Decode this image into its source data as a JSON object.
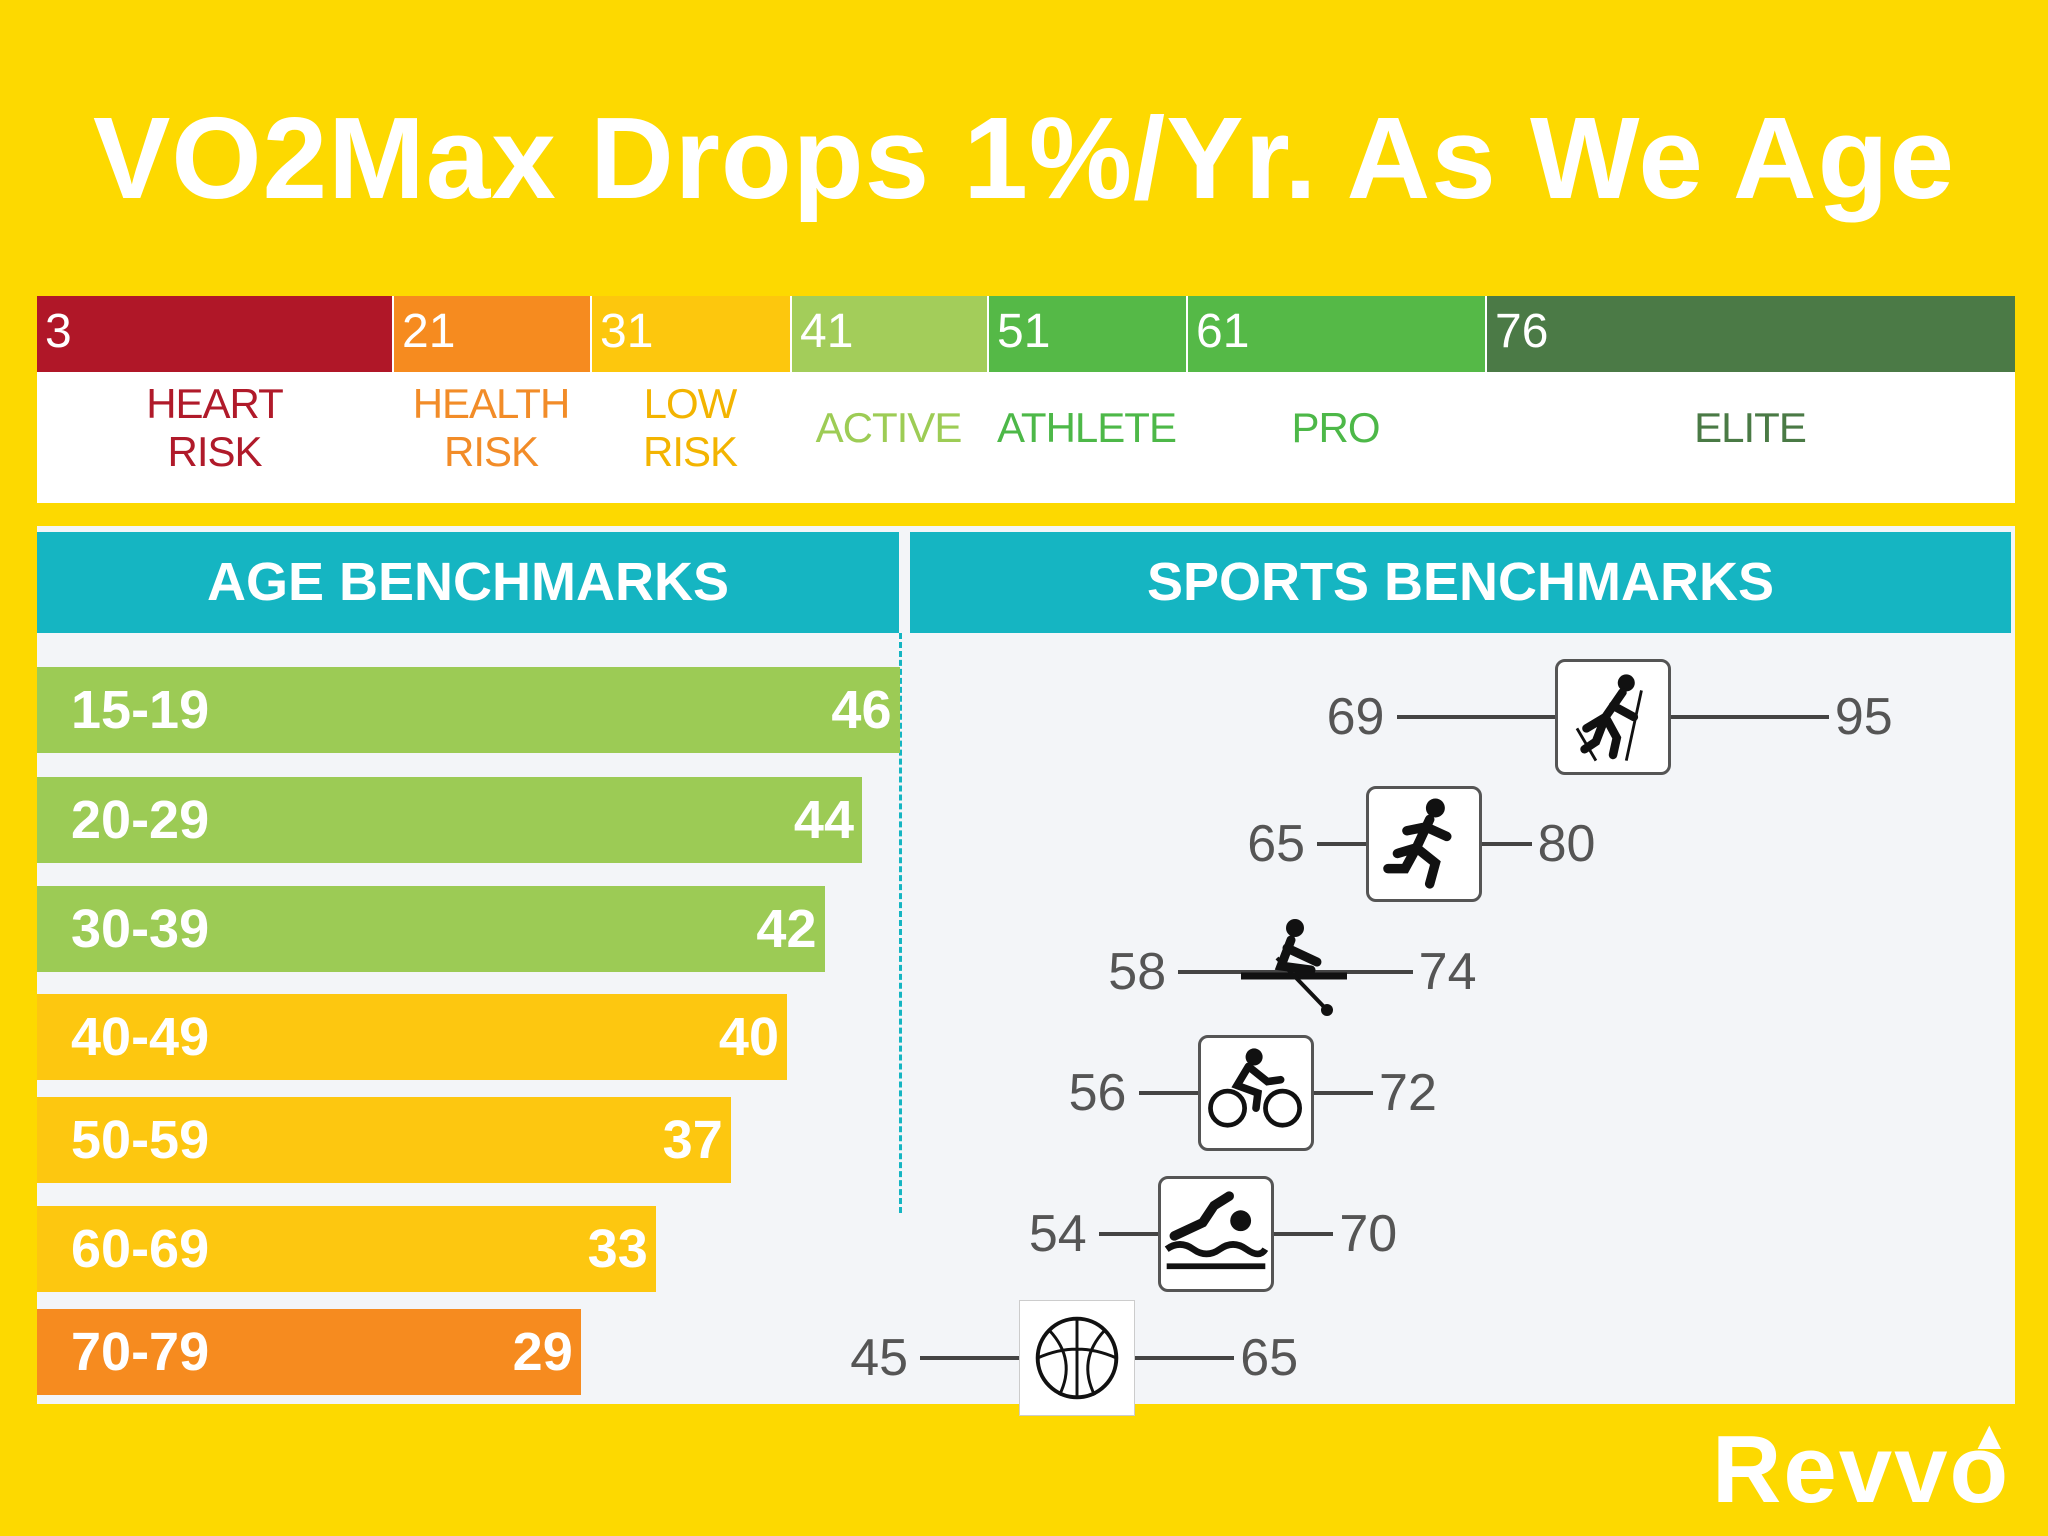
{
  "title": "VO2Max Drops 1%/Yr. As We Age",
  "colors": {
    "background": "#fdd900",
    "header": "#15b5c2",
    "panel": "#f3f5f8"
  },
  "scale": [
    {
      "start": "3",
      "label_lines": [
        "HEART",
        "RISK"
      ],
      "color": "#b01728",
      "text_color": "#b01a2a"
    },
    {
      "start": "21",
      "label_lines": [
        "HEALTH",
        "RISK"
      ],
      "color": "#f68b1f",
      "text_color": "#f28c28"
    },
    {
      "start": "31",
      "label_lines": [
        "LOW",
        "RISK"
      ],
      "color": "#fdc70d",
      "text_color": "#f3b400"
    },
    {
      "start": "41",
      "label_lines": [
        "ACTIVE"
      ],
      "color": "#a3cd5a",
      "text_color": "#9dcc55"
    },
    {
      "start": "51",
      "label_lines": [
        "ATHLETE"
      ],
      "color": "#55b947",
      "text_color": "#4db848"
    },
    {
      "start": "61",
      "label_lines": [
        "PRO"
      ],
      "color": "#55b947",
      "text_color": "#4db848"
    },
    {
      "start": "76",
      "label_lines": [
        "ELITE"
      ],
      "color": "#4b7a46",
      "text_color": "#4a7a45"
    }
  ],
  "headers": {
    "age": "AGE BENCHMARKS",
    "sports": "SPORTS BENCHMARKS"
  },
  "chart_data": [
    {
      "type": "bar",
      "title": "AGE BENCHMARKS",
      "orientation": "horizontal",
      "categories": [
        "15-19",
        "20-29",
        "30-39",
        "40-49",
        "50-59",
        "60-69",
        "70-79"
      ],
      "values": [
        46,
        44,
        42,
        40,
        37,
        33,
        29
      ],
      "colors": [
        "#9ccb55",
        "#9ccb55",
        "#9ccb55",
        "#fdc710",
        "#fdc710",
        "#fdc710",
        "#f68b1f"
      ],
      "grid": false
    },
    {
      "type": "range",
      "title": "SPORTS BENCHMARKS",
      "series": [
        {
          "icon": "cross-country-skiing-icon",
          "min": 69,
          "max": 95
        },
        {
          "icon": "running-icon",
          "min": 65,
          "max": 80
        },
        {
          "icon": "rowing-icon",
          "min": 58,
          "max": 74
        },
        {
          "icon": "cycling-icon",
          "min": 56,
          "max": 72
        },
        {
          "icon": "swimming-icon",
          "min": 54,
          "max": 70
        },
        {
          "icon": "basketball-icon",
          "min": 45,
          "max": 65
        }
      ]
    }
  ],
  "logo": "Revvo"
}
